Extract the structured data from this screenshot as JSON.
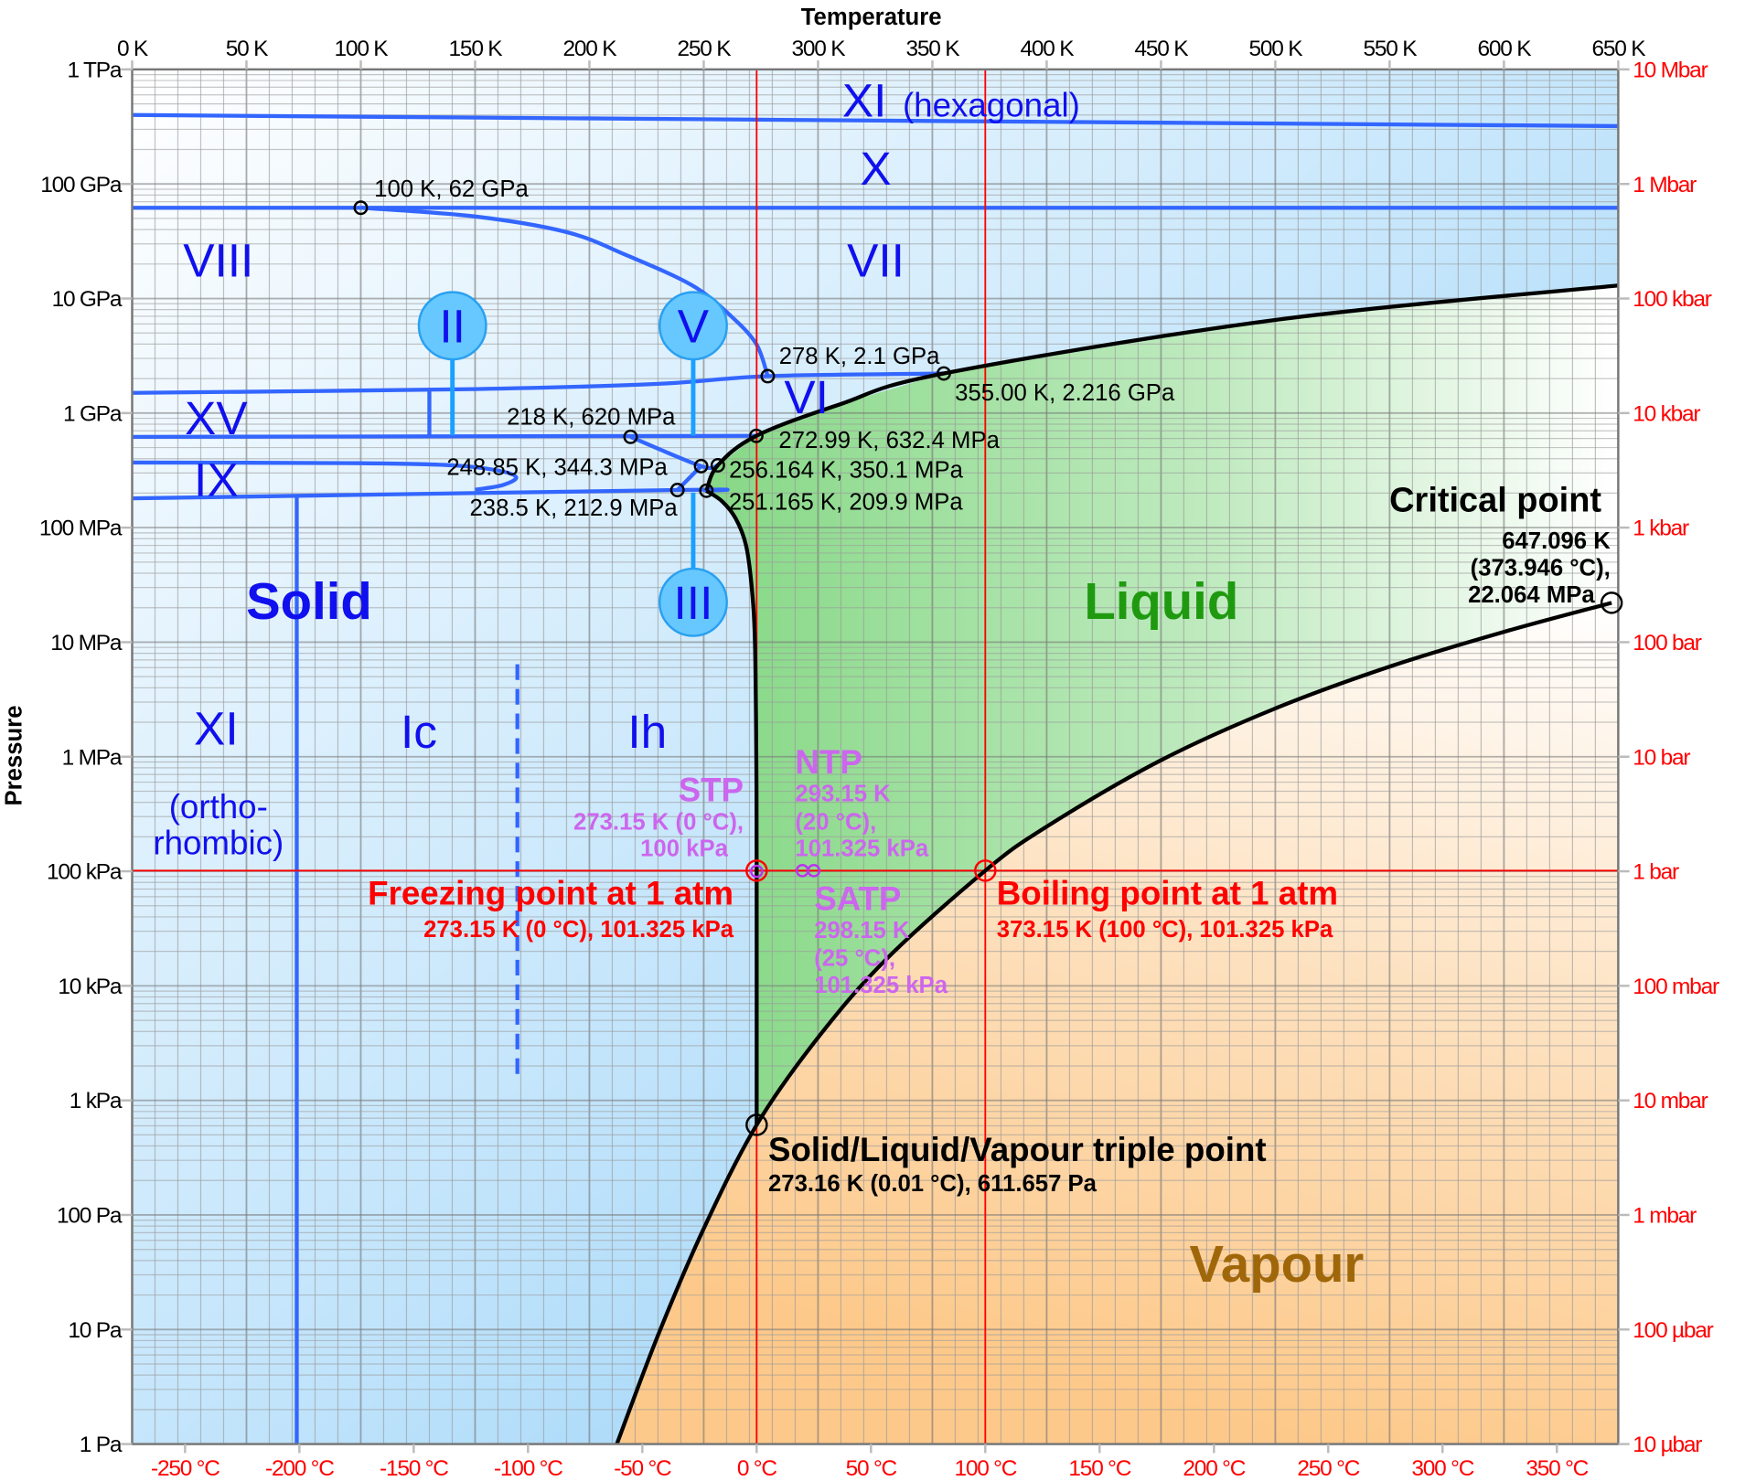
{
  "title_axis_x": "Temperature",
  "title_axis_y": "Pressure",
  "colors": {
    "ice_line": "#3366ff",
    "phase_boundary": "#000000",
    "reference_line": "#ff0000",
    "standard_conditions": "#cc66ee",
    "solid": "#8ecff7",
    "liquid": "#8fdc8f",
    "vapour": "#fdc98a",
    "phase_label": "#1010ee"
  },
  "chart_data": {
    "type": "phase-diagram",
    "x_scale": "linear",
    "x_unit": "K",
    "xlim": [
      0,
      650
    ],
    "y_scale": "log",
    "y_unit": "Pa",
    "ylim": [
      1,
      1000000000000.0
    ],
    "grid": true,
    "x_ticks_top": [
      "0 K",
      "50 K",
      "100 K",
      "150 K",
      "200 K",
      "250 K",
      "300 K",
      "350 K",
      "400 K",
      "450 K",
      "500 K",
      "550 K",
      "600 K",
      "650 K"
    ],
    "x_ticks_bottom": [
      "-250 °C",
      "-200 °C",
      "-150 °C",
      "-100 °C",
      "-50 °C",
      "0 °C",
      "50 °C",
      "100 °C",
      "150 °C",
      "200 °C",
      "250 °C",
      "300 °C",
      "350 °C"
    ],
    "y_ticks_left": [
      "1 TPa",
      "100 GPa",
      "10 GPa",
      "1 GPa",
      "100 MPa",
      "10 MPa",
      "1 MPa",
      "100 kPa",
      "10 kPa",
      "1 kPa",
      "100 Pa",
      "10 Pa",
      "1 Pa"
    ],
    "y_ticks_right": [
      "10 Mbar",
      "1 Mbar",
      "100 kbar",
      "10 kbar",
      "1 kbar",
      "100 bar",
      "10 bar",
      "1 bar",
      "100 mbar",
      "10 mbar",
      "1 mbar",
      "100 µbar",
      "10 µbar"
    ],
    "boundaries": {
      "vapour": [
        [
          212,
          1
        ],
        [
          230,
          8.9
        ],
        [
          250,
          76
        ],
        [
          273.16,
          611.657
        ],
        [
          300,
          3536
        ],
        [
          330,
          17200
        ],
        [
          373.15,
          101325
        ],
        [
          400,
          245600
        ],
        [
          450,
          932000
        ],
        [
          500,
          2640000
        ],
        [
          550,
          6120000
        ],
        [
          600,
          12300000
        ],
        [
          647.096,
          22064000
        ]
      ],
      "melting_ih": [
        [
          273.16,
          611.657
        ],
        [
          273.15,
          100000
        ],
        [
          273.0,
          1000000
        ],
        [
          272.4,
          10000000
        ],
        [
          271,
          30000000
        ],
        [
          268.5,
          70000000
        ],
        [
          264,
          120000000
        ],
        [
          258,
          170000000
        ],
        [
          251.165,
          209900000
        ]
      ],
      "liquid_high": [
        [
          251.165,
          209900000
        ],
        [
          256.164,
          350100000
        ],
        [
          272.99,
          632400000
        ],
        [
          310,
          1200000000
        ],
        [
          355,
          2216000000
        ],
        [
          500,
          6500000000
        ],
        [
          650,
          13000000000
        ]
      ],
      "ice_lines": [
        [
          [
            0,
            400000000000.0
          ],
          [
            650,
            320000000000.0
          ]
        ],
        [
          [
            0,
            62000000000.0
          ],
          [
            650,
            62000000000.0
          ]
        ],
        [
          [
            100,
            62000000000.0
          ],
          [
            150,
            52000000000.0
          ],
          [
            190,
            38000000000.0
          ],
          [
            216,
            24000000000.0
          ],
          [
            245,
            13000000000.0
          ],
          [
            262,
            7000000000.0
          ],
          [
            273,
            4000000000.0
          ],
          [
            278,
            2100000000.0
          ]
        ],
        [
          [
            0,
            1500000000.0
          ],
          [
            150,
            1620000000.0
          ],
          [
            230,
            1800000000.0
          ],
          [
            278,
            2100000000.0
          ],
          [
            355,
            2216000000.0
          ]
        ],
        [
          [
            0,
            620000000.0
          ],
          [
            272.99,
            632400000.0
          ]
        ],
        [
          [
            218,
            620000000.0
          ],
          [
            248.85,
            344300000.0
          ],
          [
            256.164,
            350100000.0
          ]
        ],
        [
          [
            238.5,
            212900000.0
          ],
          [
            248.85,
            344300000.0
          ]
        ],
        [
          [
            0,
            180000000.0
          ],
          [
            238.5,
            212900000.0
          ],
          [
            251.165,
            209900000.0
          ]
        ],
        [
          [
            0,
            370000000.0
          ],
          [
            100,
            365000000.0
          ],
          [
            140,
            350000000.0
          ],
          [
            160,
            315000000.0
          ],
          [
            168,
            275000000.0
          ],
          [
            162,
            235000000.0
          ],
          [
            150,
            214000000.0
          ]
        ],
        [
          [
            72,
            1
          ],
          [
            72,
            185000000.0
          ]
        ],
        [
          [
            130,
            620000000.0
          ],
          [
            130,
            1550000000.0
          ]
        ]
      ],
      "dashed_line": [
        [
          168.5,
          1700
        ],
        [
          168.5,
          7200000
        ]
      ]
    },
    "points": [
      {
        "T": 100,
        "P": 62000000000.0,
        "label": "100 K, 62 GPa"
      },
      {
        "T": 278,
        "P": 2100000000.0,
        "label": "278 K, 2.1 GPa"
      },
      {
        "T": 355,
        "P": 2216000000.0,
        "label": "355.00 K, 2.216 GPa"
      },
      {
        "T": 218,
        "P": 620000000.0,
        "label": "218 K, 620 MPa"
      },
      {
        "T": 272.99,
        "P": 632400000.0,
        "label": "272.99 K, 632.4 MPa"
      },
      {
        "T": 248.85,
        "P": 344300000.0,
        "label": "248.85 K, 344.3 MPa"
      },
      {
        "T": 256.164,
        "P": 350100000.0,
        "label": "256.164 K, 350.1 MPa"
      },
      {
        "T": 238.5,
        "P": 212900000.0,
        "label": "238.5 K, 212.9 MPa"
      },
      {
        "T": 251.165,
        "P": 209900000.0,
        "label": "251.165 K, 209.9 MPa"
      }
    ],
    "reference_lines": {
      "freezing_T": 273.15,
      "boiling_T": 373.15,
      "pressure_1atm": 101325
    }
  },
  "phases": {
    "xi_hex": "XI",
    "xi_hex_note": "(hexagonal)",
    "x": "X",
    "viii": "VIII",
    "vii": "VII",
    "vi": "VI",
    "xv": "XV",
    "ix": "IX",
    "ii": "II",
    "v": "V",
    "iii": "III",
    "solid": "Solid",
    "liquid": "Liquid",
    "vapour": "Vapour",
    "xi_orth": "XI",
    "xi_orth_note1": "(ortho-",
    "xi_orth_note2": "rhombic)",
    "ic": "Ic",
    "ih": "Ih"
  },
  "annotations": {
    "critical_title": "Critical point",
    "critical_l1": "647.096 K",
    "critical_l2": "(373.946 °C),",
    "critical_l3": "22.064 MPa",
    "triple_title": "Solid/Liquid/Vapour triple point",
    "triple_sub": "273.16 K (0.01 °C), 611.657 Pa",
    "freezing_title": "Freezing point at 1 atm",
    "freezing_sub": "273.15 K (0 °C), 101.325 kPa",
    "boiling_title": "Boiling point at 1 atm",
    "boiling_sub": "373.15 K (100 °C), 101.325 kPa",
    "stp_title": "STP",
    "stp_l1": "273.15 K (0 °C),",
    "stp_l2": "100 kPa",
    "ntp_title": "NTP",
    "ntp_l1": "293.15 K",
    "ntp_l2": "(20 °C),",
    "ntp_l3": "101.325 kPa",
    "satp_title": "SATP",
    "satp_l1": "298.15 K",
    "satp_l2": "(25 °C),",
    "satp_l3": "101.325 kPa"
  }
}
